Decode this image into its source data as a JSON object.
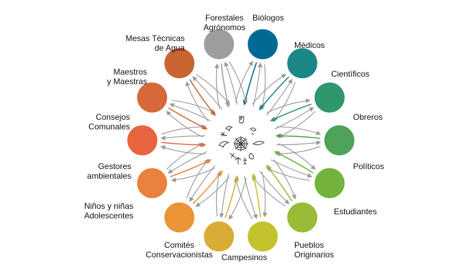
{
  "diagram": {
    "nodes": [
      {
        "id": "forestales",
        "color": "#006a94",
        "label_lines": [
          "Forestales",
          "Agrónomos"
        ],
        "extra_label": "Biólogos"
      },
      {
        "id": "medicos",
        "color": "#1b8786",
        "label_lines": [
          "Médicos"
        ]
      },
      {
        "id": "cientificos",
        "color": "#2f976b",
        "label_lines": [
          "Científicos"
        ]
      },
      {
        "id": "obreros",
        "color": "#4ea358",
        "label_lines": [
          "Obreros"
        ]
      },
      {
        "id": "politicos",
        "color": "#72b33d",
        "label_lines": [
          "Políticos"
        ]
      },
      {
        "id": "estudiantes",
        "color": "#9abb38",
        "label_lines": [
          "Estudiantes"
        ]
      },
      {
        "id": "pueblos-originarios",
        "color": "#c3c42d",
        "label_lines": [
          "Pueblos",
          "Originarios"
        ]
      },
      {
        "id": "campesinos",
        "color": "#d8ac35",
        "label_lines": [
          "Campesinos"
        ]
      },
      {
        "id": "comites-conservacionistas",
        "color": "#ec9438",
        "label_lines": [
          "Comités",
          "Conservacionistas"
        ]
      },
      {
        "id": "ninos-adolescentes",
        "color": "#e8823c",
        "label_lines": [
          "Niños y niñas",
          "Adolescentes"
        ]
      },
      {
        "id": "gestores-ambientales",
        "color": "#e6653e",
        "label_lines": [
          "Gestores",
          "ambientales"
        ]
      },
      {
        "id": "consejos-comunales",
        "color": "#d6683a",
        "label_lines": [
          "Consejos",
          "Comunales"
        ]
      },
      {
        "id": "maestros",
        "color": "#c96530",
        "label_lines": [
          "Maestros",
          "y Maestras"
        ]
      },
      {
        "id": "mesas-tecnicas",
        "color": "#9e9e9e",
        "label_lines": [
          "Mesas Técnicas",
          "de Agua"
        ]
      }
    ],
    "center": {
      "icon": "web-of-life-icon",
      "stroke": "#333333"
    },
    "arrow_color": "#9a9a9a"
  }
}
